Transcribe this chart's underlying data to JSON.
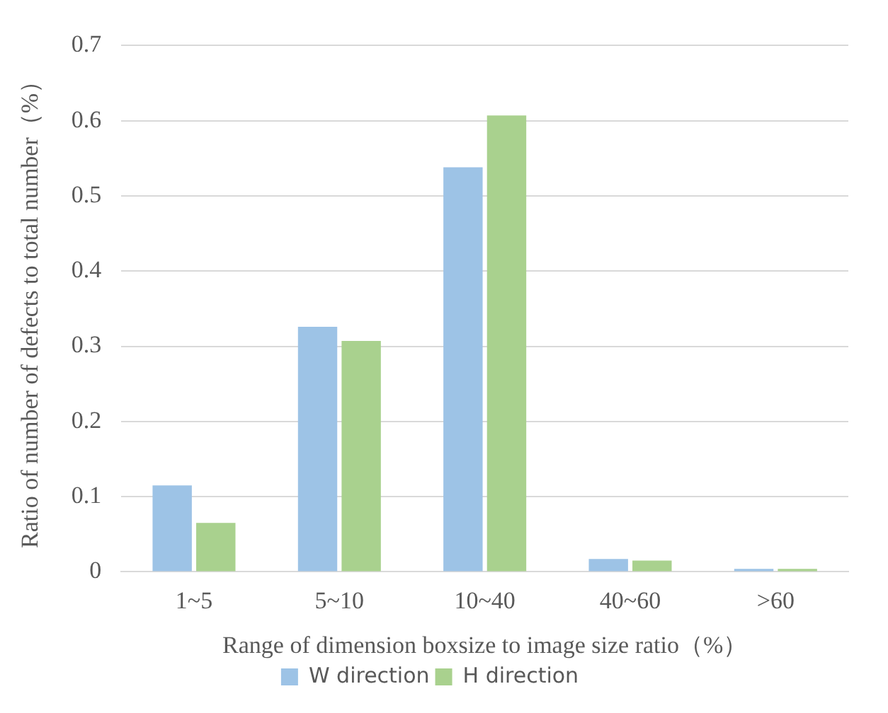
{
  "chart_data": {
    "type": "bar",
    "xlabel": "Range of dimension boxsize to image size ratio（%）",
    "ylabel": "Ratio of number of defects to total number（%）",
    "categories": [
      "1~5",
      "5~10",
      "10~40",
      "40~60",
      ">60"
    ],
    "series": [
      {
        "name": "W direction",
        "color": "#9dc3e6",
        "values": [
          0.115,
          0.326,
          0.538,
          0.017,
          0.004
        ]
      },
      {
        "name": "H direction",
        "color": "#a9d18e",
        "values": [
          0.065,
          0.307,
          0.607,
          0.015,
          0.004
        ]
      }
    ],
    "ylim": [
      0,
      0.7
    ],
    "yticks": [
      0,
      0.1,
      0.2,
      0.3,
      0.4,
      0.5,
      0.6,
      0.7
    ],
    "grid": "y",
    "legend": "bottom"
  }
}
